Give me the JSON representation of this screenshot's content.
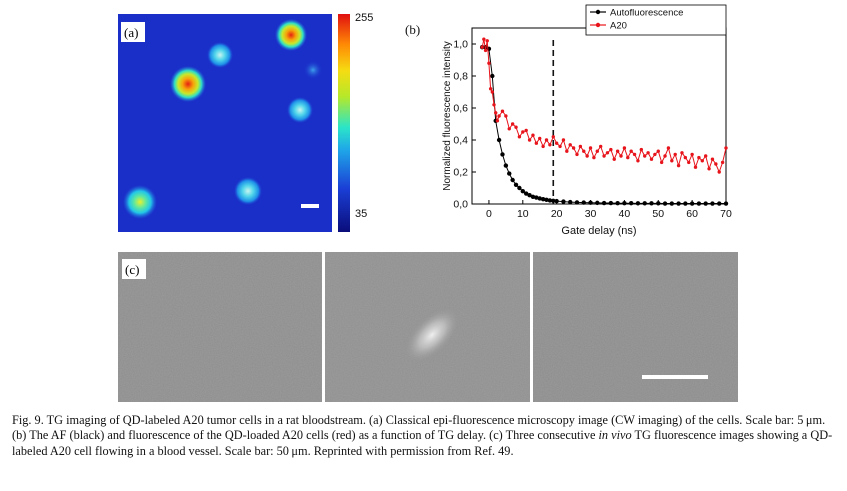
{
  "panel_a": {
    "label": "(a)",
    "colorbar": {
      "max_label": "255",
      "min_label": "35"
    }
  },
  "panel_b": {
    "label": "(b)",
    "chart_data": {
      "type": "line",
      "title": "",
      "xlabel": "Gate delay (ns)",
      "ylabel": "Normalized fluorescence intensity",
      "xlim": [
        -5,
        70
      ],
      "ylim": [
        0,
        1.1
      ],
      "xticks": [
        "0",
        "10",
        "20",
        "30",
        "40",
        "50",
        "60",
        "70"
      ],
      "yticks": [
        "0,0",
        "0,2",
        "0,4",
        "0,6",
        "0,8",
        "1,0"
      ],
      "vline_x": 19,
      "legend_position": "top-right",
      "series": [
        {
          "name": "Autofluorescence",
          "color": "#000000",
          "x": [
            -2,
            -1,
            0,
            1,
            2,
            3,
            4,
            5,
            6,
            7,
            8,
            9,
            10,
            11,
            12,
            13,
            14,
            15,
            16,
            17,
            18,
            19,
            20,
            22,
            24,
            26,
            28,
            30,
            32,
            34,
            36,
            38,
            40,
            42,
            44,
            46,
            48,
            50,
            52,
            54,
            56,
            58,
            60,
            62,
            64,
            66,
            68,
            70
          ],
          "values": [
            0.98,
            0.98,
            0.97,
            0.8,
            0.52,
            0.4,
            0.31,
            0.24,
            0.19,
            0.15,
            0.12,
            0.1,
            0.08,
            0.065,
            0.055,
            0.045,
            0.04,
            0.035,
            0.03,
            0.026,
            0.022,
            0.02,
            0.018,
            0.015,
            0.012,
            0.01,
            0.009,
            0.008,
            0.007,
            0.006,
            0.006,
            0.005,
            0.005,
            0.005,
            0.004,
            0.004,
            0.004,
            0.004,
            0.003,
            0.003,
            0.003,
            0.003,
            0.003,
            0.003,
            0.003,
            0.003,
            0.003,
            0.003
          ]
        },
        {
          "name": "A20",
          "color": "#e8141b",
          "x": [
            -2,
            -1.5,
            -1,
            -0.5,
            0,
            0.5,
            1,
            1.5,
            2,
            2.5,
            3,
            4,
            5,
            6,
            7,
            8,
            9,
            10,
            11,
            12,
            13,
            14,
            15,
            16,
            17,
            18,
            19,
            20,
            21,
            22,
            23,
            24,
            25,
            26,
            27,
            28,
            29,
            30,
            31,
            32,
            33,
            34,
            35,
            36,
            37,
            38,
            39,
            40,
            41,
            42,
            43,
            44,
            45,
            46,
            47,
            48,
            49,
            50,
            51,
            52,
            53,
            54,
            55,
            56,
            57,
            58,
            59,
            60,
            61,
            62,
            63,
            64,
            65,
            66,
            67,
            68,
            69,
            70
          ],
          "values": [
            0.98,
            1.03,
            0.96,
            1.02,
            0.88,
            0.72,
            0.7,
            0.62,
            0.57,
            0.52,
            0.55,
            0.58,
            0.55,
            0.47,
            0.5,
            0.48,
            0.42,
            0.45,
            0.46,
            0.4,
            0.43,
            0.38,
            0.41,
            0.36,
            0.4,
            0.37,
            0.42,
            0.38,
            0.36,
            0.4,
            0.33,
            0.37,
            0.35,
            0.31,
            0.36,
            0.33,
            0.3,
            0.35,
            0.29,
            0.33,
            0.36,
            0.3,
            0.32,
            0.34,
            0.28,
            0.33,
            0.3,
            0.35,
            0.29,
            0.33,
            0.31,
            0.27,
            0.34,
            0.3,
            0.32,
            0.28,
            0.31,
            0.33,
            0.26,
            0.3,
            0.35,
            0.27,
            0.31,
            0.24,
            0.32,
            0.29,
            0.26,
            0.31,
            0.23,
            0.29,
            0.27,
            0.3,
            0.22,
            0.28,
            0.25,
            0.2,
            0.26,
            0.35
          ]
        }
      ]
    }
  },
  "panel_c": {
    "label": "(c)"
  },
  "caption": {
    "part1": "Fig. 9.   TG imaging of QD-labeled A20 tumor cells in a rat bloodstream. (a) Classical epi-fluorescence microscopy image (CW imaging) of the cells. Scale bar: 5 μm. (b) The AF (black) and fluorescence of the QD-loaded A20 cells (red) as a function of TG delay. (c) Three consecutive ",
    "italic": "in vivo",
    "part2": " TG fluorescence images showing a QD-labeled A20 cell flowing in a blood vessel. Scale bar: 50 μm. Reprinted with permission from Ref. 49."
  }
}
